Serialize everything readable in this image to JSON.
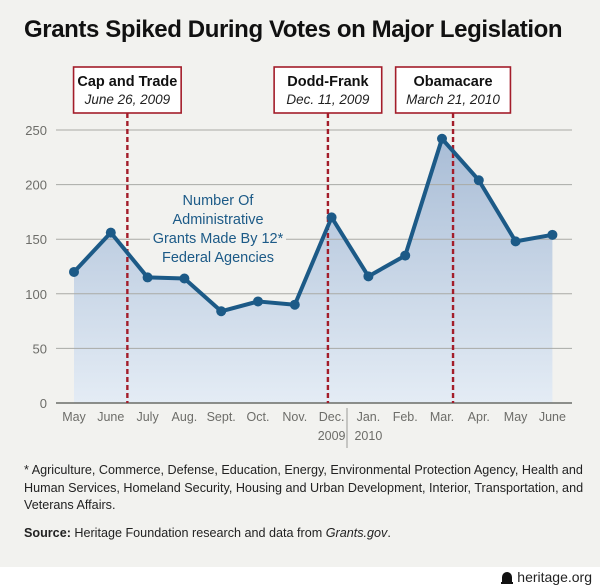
{
  "footnote": "* Agriculture, Commerce, Defense, Education, Energy, Environmental Protection Agency, Health and Human Services, Homeland Security, Housing and Urban Development, Interior, Transportation, and Veterans Affairs.",
  "source": {
    "label": "Source:",
    "text": " Heritage Foundation research and data from ",
    "italic": "Grants.gov",
    "end": "."
  },
  "logo": {
    "icon": "liberty-bell-icon",
    "text": "heritage.org"
  },
  "colors": {
    "line": "#1c5a87",
    "area_top": "#a9bdd6",
    "area_bottom": "#e4ecf5",
    "event": "#a31d2a",
    "grid": "#a9aaa6"
  },
  "chart_data": {
    "type": "area",
    "title": "Grants Spiked During Votes on Major Legislation",
    "xlabel": "",
    "ylabel": "",
    "series_label": [
      "Number Of",
      "Administrative",
      "Grants Made By 12*",
      "Federal Agencies"
    ],
    "categories": [
      "May",
      "June",
      "July",
      "Aug.",
      "Sept.",
      "Oct.",
      "Nov.",
      "Dec.",
      "Jan.",
      "Feb.",
      "Mar.",
      "Apr.",
      "May",
      "June"
    ],
    "year_labels": [
      {
        "after_index": 7,
        "label": "2009"
      },
      {
        "after_index": 8,
        "label": "2010"
      }
    ],
    "series": [
      {
        "name": "Administrative grants by 12 federal agencies",
        "values": [
          120,
          156,
          115,
          114,
          84,
          93,
          90,
          170,
          116,
          135,
          242,
          204,
          148,
          154
        ]
      }
    ],
    "ylim": [
      0,
      250
    ],
    "yticks": [
      0,
      50,
      100,
      150,
      200,
      250
    ],
    "grid": true,
    "events": [
      {
        "name": "Cap and Trade",
        "date": "June 26, 2009",
        "position": 1.45
      },
      {
        "name": "Dodd-Frank",
        "date": "Dec. 11, 2009",
        "position": 6.9
      },
      {
        "name": "Obamacare",
        "date": "March 21, 2010",
        "position": 10.3
      }
    ]
  }
}
